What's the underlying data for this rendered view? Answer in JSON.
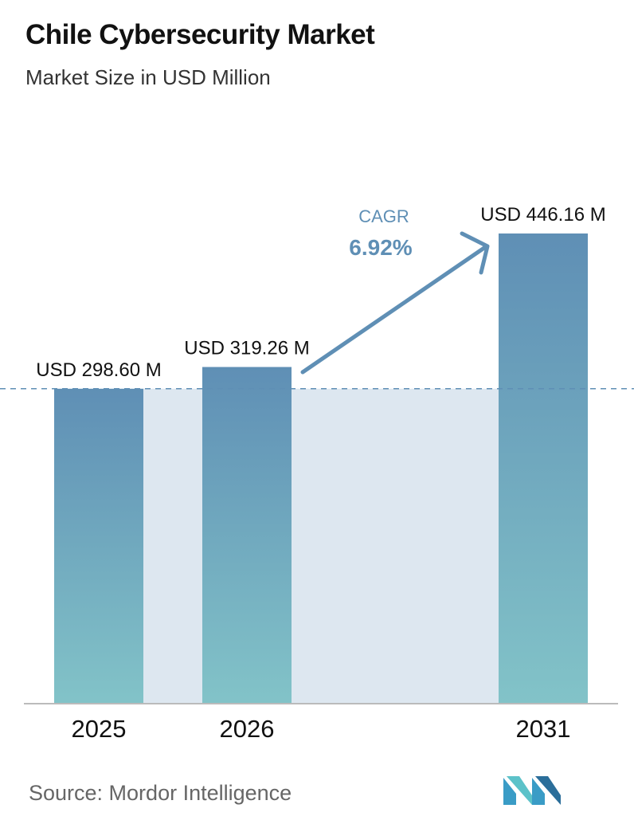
{
  "header": {
    "title": "Chile Cybersecurity Market",
    "subtitle": "Market Size in USD Million"
  },
  "footer": {
    "source": "Source:  Mordor Intelligence",
    "logo_icon": "mordor-intelligence-logo"
  },
  "colors": {
    "bar_top": "#5f8fb5",
    "bar_bottom": "#82c3c8",
    "band": "#dde7f0",
    "arrow": "#5f8fb5",
    "dashed_line": "#5f8fb5",
    "axis": "#bbbbbb"
  },
  "chart_data": {
    "type": "bar",
    "categories": [
      "2025",
      "2026",
      "2031"
    ],
    "values": [
      298.6,
      319.26,
      446.16
    ],
    "data_labels": [
      "USD 298.60 M",
      "USD 319.26 M",
      "USD 446.16 M"
    ],
    "ylim": [
      0,
      446.16
    ],
    "annotation": {
      "label": "CAGR",
      "value": "6.92%"
    },
    "grid": false
  }
}
